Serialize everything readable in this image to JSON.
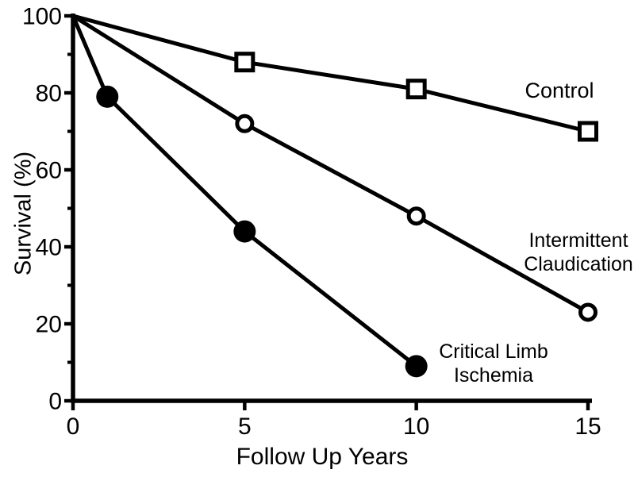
{
  "figure": {
    "background_color": "#ffffff",
    "line_color": "#000000"
  },
  "chart_data": {
    "type": "line",
    "title": "",
    "xlabel": "Follow Up Years",
    "ylabel": "Survival (%)",
    "xlim": [
      0,
      15
    ],
    "ylim": [
      0,
      100
    ],
    "x_ticks": [
      0,
      5,
      10,
      15
    ],
    "y_ticks_major": [
      0,
      20,
      40,
      60,
      80,
      100
    ],
    "y_ticks_minor": [
      10,
      30,
      50,
      70,
      90
    ],
    "grid": false,
    "legend_position": "inline-annotations",
    "series": [
      {
        "name": "Control",
        "marker": "open-square",
        "color": "#000000",
        "points": [
          [
            0,
            100
          ],
          [
            5,
            88
          ],
          [
            10,
            81
          ],
          [
            15,
            70
          ]
        ]
      },
      {
        "name": "Intermittent Claudication",
        "marker": "open-circle",
        "color": "#000000",
        "points": [
          [
            0,
            100
          ],
          [
            5,
            72
          ],
          [
            10,
            48
          ],
          [
            15,
            23
          ]
        ]
      },
      {
        "name": "Critical Limb Ischemia",
        "marker": "filled-circle",
        "color": "#000000",
        "points": [
          [
            0,
            100
          ],
          [
            1,
            79
          ],
          [
            5,
            44
          ],
          [
            10,
            9
          ]
        ]
      }
    ],
    "annotations": [
      {
        "series": "Control",
        "lines": [
          "Control"
        ]
      },
      {
        "series": "Intermittent Claudication",
        "lines": [
          "Intermittent",
          "Claudication"
        ]
      },
      {
        "series": "Critical Limb Ischemia",
        "lines": [
          "Critical Limb",
          "Ischemia"
        ]
      }
    ]
  }
}
